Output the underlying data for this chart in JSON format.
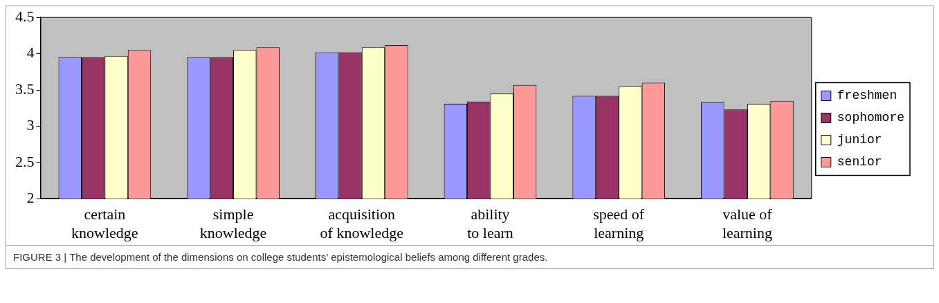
{
  "chart_data": {
    "type": "bar",
    "categories": [
      "certain knowledge",
      "simple knowledge",
      "acquisition of knowledge",
      "ability to learn",
      "speed of learning",
      "value of learning"
    ],
    "series": [
      {
        "name": "freshmen",
        "color": "#9999ff",
        "values": [
          3.95,
          3.95,
          4.02,
          3.31,
          3.42,
          3.33
        ]
      },
      {
        "name": "sophomore",
        "color": "#993366",
        "values": [
          3.95,
          3.95,
          4.02,
          3.34,
          3.42,
          3.23
        ]
      },
      {
        "name": "junior",
        "color": "#ffffcc",
        "values": [
          3.97,
          4.05,
          4.09,
          3.45,
          3.55,
          3.31
        ]
      },
      {
        "name": "senior",
        "color": "#ff9999",
        "values": [
          4.05,
          4.09,
          4.12,
          3.57,
          3.6,
          3.35
        ]
      }
    ],
    "ylim": [
      2,
      4.5
    ],
    "yticks": [
      2,
      2.5,
      3,
      3.5,
      4,
      4.5
    ],
    "grid": false,
    "legend": "right",
    "annotations": [
      "FIGURE 3 | The development of the dimensions on college students’ epistemological beliefs among different grades."
    ]
  }
}
